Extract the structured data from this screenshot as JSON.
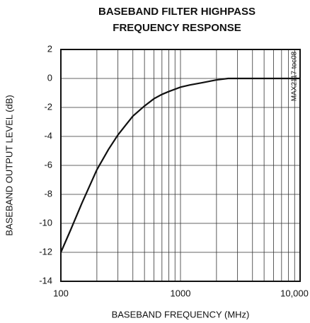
{
  "chart_data": {
    "type": "line",
    "title": [
      "BASEBAND FILTER HIGHPASS",
      "FREQUENCY RESPONSE"
    ],
    "x_label": "BASEBAND FREQUENCY (MHz)",
    "y_label": "BASEBAND OUTPUT LEVEL (dB)",
    "annotation": "MAX2117 toc08",
    "x_log": true,
    "xlim": [
      100,
      10000
    ],
    "xticks": [
      100,
      1000,
      {
        "value": 10000,
        "label": "10,000"
      }
    ],
    "x_minor_grid": [
      200,
      300,
      400,
      500,
      600,
      700,
      800,
      900,
      2000,
      3000,
      4000,
      5000,
      6000,
      7000,
      8000,
      9000
    ],
    "ylim": [
      -14,
      2
    ],
    "yticks": [
      -14,
      -12,
      -10,
      -8,
      -6,
      -4,
      -2,
      0,
      2
    ],
    "grid": true,
    "series": [
      {
        "color": "#111111",
        "x": [
          100,
          120,
          150,
          200,
          250,
          300,
          350,
          400,
          500,
          600,
          700,
          800,
          1000,
          1200,
          1500,
          2000,
          2500,
          3000,
          5000,
          10000
        ],
        "values": [
          -12,
          -10.5,
          -8.6,
          -6.3,
          -4.9,
          -3.9,
          -3.2,
          -2.6,
          -1.9,
          -1.4,
          -1.1,
          -0.9,
          -0.6,
          -0.45,
          -0.3,
          -0.1,
          0,
          0,
          0,
          0
        ]
      }
    ]
  }
}
